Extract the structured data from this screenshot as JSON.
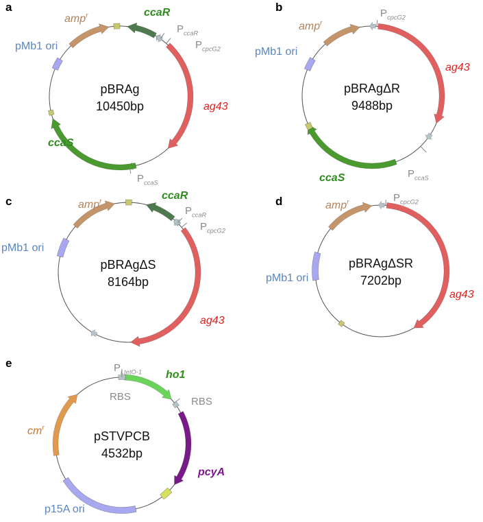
{
  "colors": {
    "amp": "#c4956a",
    "ori": "#a8a8f0",
    "ccaR": "#4f7a4f",
    "ag43": "#e06060",
    "ccaS": "#4a9a30",
    "ho1": "#6ad45a",
    "pcyA": "#7a1a8a",
    "cm": "#e09a50",
    "promoter": "#b4c4c8",
    "rbs_yellow": "#d8e060",
    "marker": "#c8c870",
    "label_amp": "#b3825a",
    "label_ori": "#5a85c0",
    "label_ccaR": "#2e8b1e",
    "label_ag43": "#e02020",
    "label_ccaS": "#2e8b1e",
    "label_grey": "#8a8a8a",
    "label_ho1": "#2e8b1e",
    "label_pcyA": "#7a1a8a",
    "label_cm": "#c8782a",
    "label_p15A": "#5a85c0"
  },
  "panels": [
    {
      "id": "a",
      "letter": "a",
      "name": "pBRAg",
      "size": "10450bp",
      "labels": [
        {
          "text": "amp",
          "sup": "r",
          "color": "label_amp",
          "italic": true
        },
        {
          "text": "ccaR",
          "color": "label_ccaR",
          "italic": true,
          "bold": true
        },
        {
          "text": "P",
          "sub": "ccaR",
          "color": "label_grey"
        },
        {
          "text": "P",
          "sub": "cpcG2",
          "color": "label_grey"
        },
        {
          "text": "pMb1 ori",
          "color": "label_ori"
        },
        {
          "text": "ag43",
          "color": "label_ag43",
          "italic": true
        },
        {
          "text": "ccaS",
          "color": "label_ccaS",
          "italic": true,
          "bold": true
        },
        {
          "text": "P",
          "sub": "ccaS",
          "color": "label_grey"
        }
      ]
    },
    {
      "id": "b",
      "letter": "b",
      "name": "pBRAgΔR",
      "size": "9488bp",
      "labels": [
        {
          "text": "P",
          "sub": "cpcG2",
          "color": "label_grey"
        },
        {
          "text": "amp",
          "sup": "r",
          "color": "label_amp",
          "italic": true
        },
        {
          "text": "pMb1 ori",
          "color": "label_ori"
        },
        {
          "text": "ag43",
          "color": "label_ag43",
          "italic": true
        },
        {
          "text": "ccaS",
          "color": "label_ccaS",
          "italic": true,
          "bold": true
        },
        {
          "text": "P",
          "sub": "ccaS",
          "color": "label_grey"
        }
      ]
    },
    {
      "id": "c",
      "letter": "c",
      "name": "pBRAgΔS",
      "size": "8164bp",
      "labels": [
        {
          "text": "amp",
          "sup": "r",
          "color": "label_amp",
          "italic": true
        },
        {
          "text": "ccaR",
          "color": "label_ccaR",
          "italic": true,
          "bold": true
        },
        {
          "text": "P",
          "sub": "ccaR",
          "color": "label_grey"
        },
        {
          "text": "P",
          "sub": "cpcG2",
          "color": "label_grey"
        },
        {
          "text": "pMb1 ori",
          "color": "label_ori"
        },
        {
          "text": "ag43",
          "color": "label_ag43",
          "italic": true
        }
      ]
    },
    {
      "id": "d",
      "letter": "d",
      "name": "pBRAgΔSR",
      "size": "7202bp",
      "labels": [
        {
          "text": "amp",
          "sup": "r",
          "color": "label_amp",
          "italic": true
        },
        {
          "text": "P",
          "sub": "cpcG2",
          "color": "label_grey"
        },
        {
          "text": "pMb1 ori",
          "color": "label_ori"
        },
        {
          "text": "ag43",
          "color": "label_ag43",
          "italic": true
        }
      ]
    },
    {
      "id": "e",
      "letter": "e",
      "name": "pSTVPCB",
      "size": "4532bp",
      "labels": [
        {
          "text": "P",
          "sub": "LtetO-1",
          "color": "label_grey"
        },
        {
          "text": "ho1",
          "color": "label_ho1",
          "italic": true,
          "bold": true
        },
        {
          "text": "RBS",
          "color": "label_grey"
        },
        {
          "text": "RBS",
          "color": "label_grey"
        },
        {
          "text": "cm",
          "sup": "r",
          "color": "label_cm",
          "italic": true
        },
        {
          "text": "pcyA",
          "color": "label_pcyA",
          "italic": true,
          "bold": true
        },
        {
          "text": "p15A ori",
          "color": "label_p15A"
        }
      ]
    }
  ]
}
